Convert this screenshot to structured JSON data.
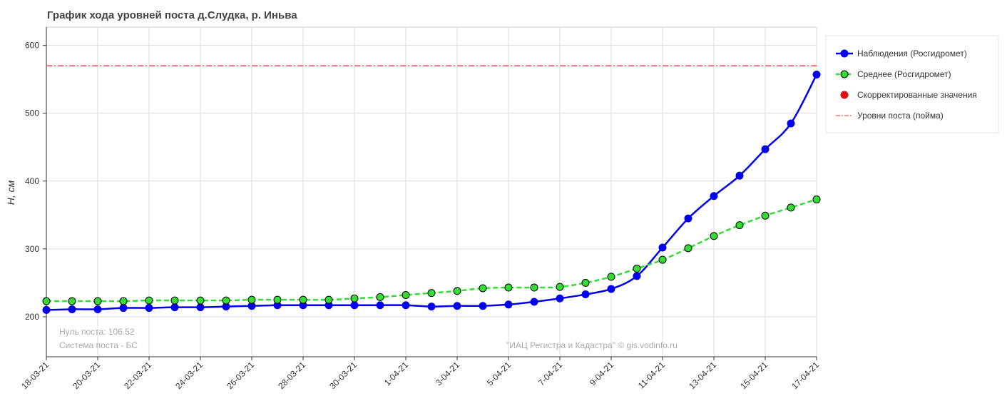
{
  "chart_data": {
    "type": "line",
    "title": "График хода уровней поста д.Слудка, р. Иньва",
    "y_label": "H, см",
    "categories": [
      "18-03-21",
      null,
      "20-03-21",
      null,
      "22-03-21",
      null,
      "24-03-21",
      null,
      "26-03-21",
      null,
      "28-03-21",
      null,
      "30-03-21",
      null,
      "1-04-21",
      null,
      "3-04-21",
      null,
      "5-04-21",
      null,
      "7-04-21",
      null,
      "9-04-21",
      null,
      "11-04-21",
      null,
      "13-04-21",
      null,
      "15-04-21",
      null,
      "17-04-21"
    ],
    "series": [
      {
        "name": "Наблюдения (Росгидромет)",
        "color": "#0000ee",
        "style": "solid",
        "values": [
          210,
          211,
          211,
          213,
          213,
          214,
          214,
          215,
          216,
          217,
          217,
          217,
          217,
          217,
          217,
          215,
          216,
          216,
          218,
          222,
          227,
          233,
          241,
          260,
          302,
          345,
          378,
          408,
          447,
          485,
          557
        ]
      },
      {
        "name": "Среднее (Росгидромет)",
        "color": "#33dd33",
        "style": "dashed",
        "values": [
          223,
          223,
          223,
          223,
          224,
          224,
          224,
          224,
          225,
          225,
          225,
          225,
          227,
          229,
          232,
          235,
          238,
          242,
          243,
          243,
          244,
          250,
          259,
          271,
          284,
          301,
          319,
          335,
          349,
          361,
          373
        ]
      },
      {
        "name": "Скорректированные значения",
        "color": "#dd1111",
        "style": "markers",
        "values": [
          null,
          null,
          null,
          null,
          null,
          null,
          null,
          null,
          null,
          null,
          null,
          null,
          null,
          null,
          null,
          null,
          null,
          null,
          null,
          null,
          null,
          null,
          null,
          null,
          null,
          null,
          null,
          null,
          null,
          null,
          null
        ]
      }
    ],
    "reference_lines": [
      {
        "name": "Уровни поста (пойма)",
        "value": 570,
        "color": "#ff3333"
      }
    ],
    "annotations": [
      "Нуль поста: 106.52",
      "Система поста - БС",
      "\"ИАЦ Регистра и Кадастра\" © gis.vodinfo.ru"
    ],
    "ylim": [
      141,
      627
    ],
    "yticks": [
      200,
      300,
      400,
      500,
      600
    ],
    "grid": true,
    "legend": "outside-right"
  }
}
